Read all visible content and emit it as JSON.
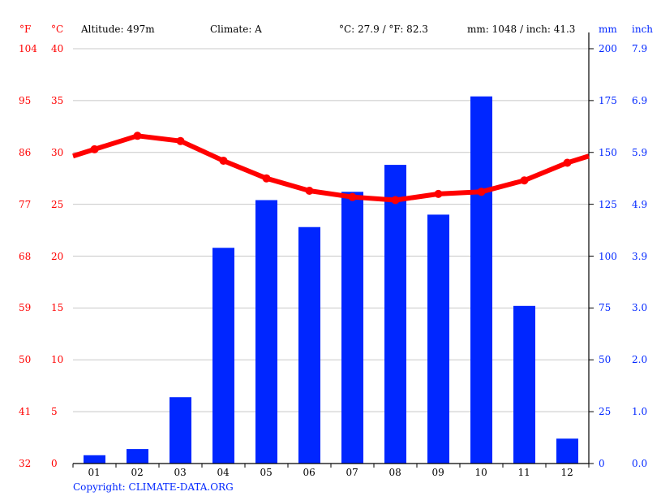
{
  "header": {
    "unit_f": "°F",
    "unit_c": "°C",
    "altitude": "Altitude: 497m",
    "climate": "Climate: A",
    "temp_summary": "°C: 27.9 / °F: 82.3",
    "precip_summary": "mm: 1048 / inch: 41.3",
    "unit_mm": "mm",
    "unit_inch": "inch"
  },
  "copyright": "Copyright: CLIMATE-DATA.ORG",
  "colors": {
    "temperature": "#ff0000",
    "precipitation": "#0026ff",
    "grid": "#c8c8c8",
    "axis": "#000000"
  },
  "axes": {
    "f_ticks": [
      "104",
      "95",
      "86",
      "77",
      "68",
      "59",
      "50",
      "41",
      "32"
    ],
    "c_ticks": [
      "40",
      "35",
      "30",
      "25",
      "20",
      "15",
      "10",
      "5",
      "0"
    ],
    "mm_ticks": [
      "200",
      "175",
      "150",
      "125",
      "100",
      "75",
      "50",
      "25",
      "0"
    ],
    "inch_ticks": [
      "7.9",
      "6.9",
      "5.9",
      "4.9",
      "3.9",
      "3.0",
      "2.0",
      "1.0",
      "0.0"
    ],
    "months": [
      "01",
      "02",
      "03",
      "04",
      "05",
      "06",
      "07",
      "08",
      "09",
      "10",
      "11",
      "12"
    ]
  },
  "chart_data": {
    "type": "bar+line",
    "title": "",
    "categories": [
      "01",
      "02",
      "03",
      "04",
      "05",
      "06",
      "07",
      "08",
      "09",
      "10",
      "11",
      "12"
    ],
    "series": [
      {
        "name": "Precipitation (mm)",
        "type": "bar",
        "axis": "right",
        "values": [
          4,
          7,
          32,
          104,
          127,
          114,
          131,
          144,
          120,
          177,
          76,
          12
        ]
      },
      {
        "name": "Temperature (°C)",
        "type": "line",
        "axis": "left",
        "values": [
          30.3,
          31.6,
          31.1,
          29.2,
          27.5,
          26.3,
          25.7,
          25.4,
          26.0,
          26.2,
          27.3,
          29.0
        ]
      }
    ],
    "left_axis": {
      "label": "°C",
      "ylim": [
        0,
        40
      ],
      "alt_label": "°F",
      "alt_ylim": [
        32,
        104
      ]
    },
    "right_axis": {
      "label": "mm",
      "ylim": [
        0,
        200
      ],
      "alt_label": "inch",
      "alt_ylim": [
        0.0,
        7.9
      ]
    },
    "annotations": [
      "Altitude: 497m",
      "Climate: A",
      "°C: 27.9 / °F: 82.3",
      "mm: 1048 / inch: 41.3"
    ],
    "grid": true,
    "legend": null
  }
}
